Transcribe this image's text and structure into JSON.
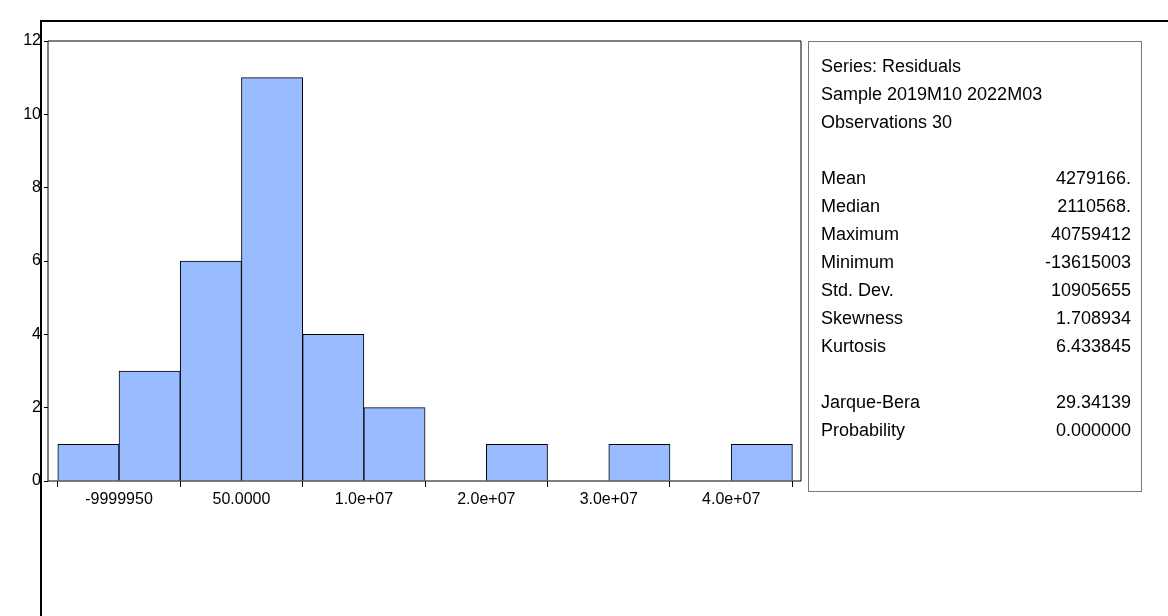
{
  "chart_data": [
    {
      "type": "histogram",
      "bins": [
        -14999950,
        -9999950,
        -4999950,
        50,
        5000050,
        10000050,
        15000050,
        20000050,
        25000050,
        30000050,
        35000050,
        40000050,
        45000050
      ],
      "values": [
        1,
        3,
        6,
        11,
        4,
        2,
        0,
        1,
        0,
        1,
        0,
        1
      ],
      "color": "#99bbff",
      "xlim": [
        -15800000,
        45700000
      ],
      "xticks": [
        -9999950,
        {
          "value": 50,
          "label": "50.0000"
        },
        {
          "value": 10000050,
          "label": "1.0e+07"
        },
        {
          "value": 20000050,
          "label": "2.0e+07"
        },
        {
          "value": 30000050,
          "label": "3.0e+07"
        },
        {
          "value": 40000050,
          "label": "4.0e+07"
        }
      ],
      "ylim": [
        0,
        12
      ],
      "yticks": [
        0,
        2,
        4,
        6,
        8,
        10,
        12
      ],
      "grid": false,
      "legend": false
    },
    {
      "type": "other",
      "title": "Series: Residuals",
      "annotations": [
        "Sample 2019M10 2022M03",
        "Observations 30",
        "Mean\t4279166.",
        "Median\t2110568.",
        "Maximum\t40759412",
        "Minimum\t-13615003",
        "Std. Dev.\t10905655",
        "Skewness\t1.708934",
        "Kurtosis\t6.433845"
      ]
    },
    {
      "type": "other",
      "annotations": [
        "Jarque-Bera\t29.34139",
        "Probability\t0.000000"
      ]
    }
  ]
}
